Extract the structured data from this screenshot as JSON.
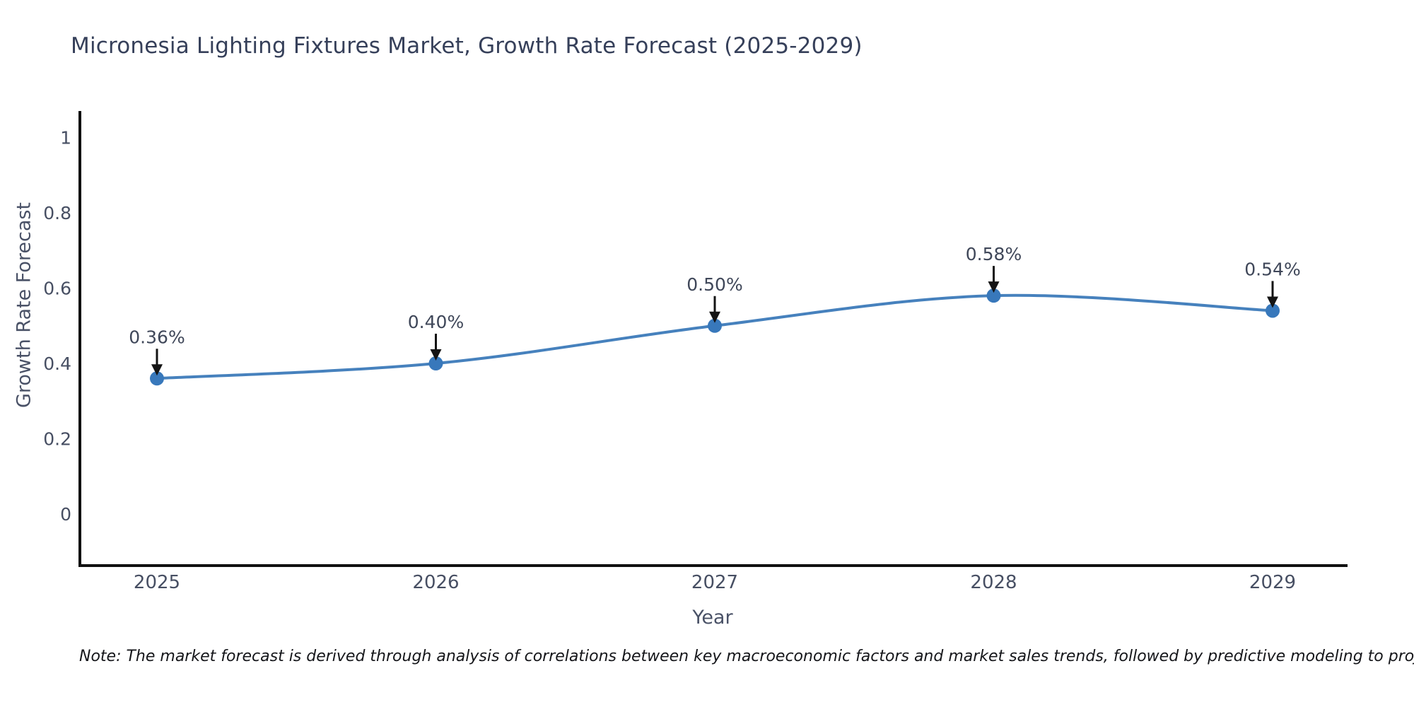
{
  "title": "Micronesia Lighting Fixtures Market, Growth Rate Forecast (2025-2029)",
  "note": "Note: The market forecast is derived through analysis of correlations between key macroeconomic factors and market sales trends, followed by predictive modeling to project future sales",
  "chart_data": {
    "type": "line",
    "title": "Micronesia Lighting Fixtures Market, Growth Rate Forecast (2025-2029)",
    "xlabel": "Year",
    "ylabel": "Growth Rate Forecast",
    "categories": [
      "2025",
      "2026",
      "2027",
      "2028",
      "2029"
    ],
    "x": [
      2025,
      2026,
      2027,
      2028,
      2029
    ],
    "values": [
      0.36,
      0.4,
      0.5,
      0.58,
      0.54
    ],
    "point_labels": [
      "0.36%",
      "0.40%",
      "0.50%",
      "0.58%",
      "0.54%"
    ],
    "ytick_labels": [
      "0",
      "0.2",
      "0.4",
      "0.6",
      "0.8",
      "1"
    ],
    "yticks": [
      0,
      0.2,
      0.4,
      0.6,
      0.8,
      1
    ],
    "ylim": [
      -0.14,
      1.07
    ],
    "grid": false,
    "legend": false,
    "line_shape": "spline",
    "colors": {
      "line": "#4681bd",
      "marker": "#3878bb",
      "arrow": "#141414",
      "axis": "#111111",
      "title": "#36405a",
      "tick": "#474f63",
      "annotation": "#3f4759",
      "note": "#15161a",
      "background": "#ffffff"
    }
  }
}
